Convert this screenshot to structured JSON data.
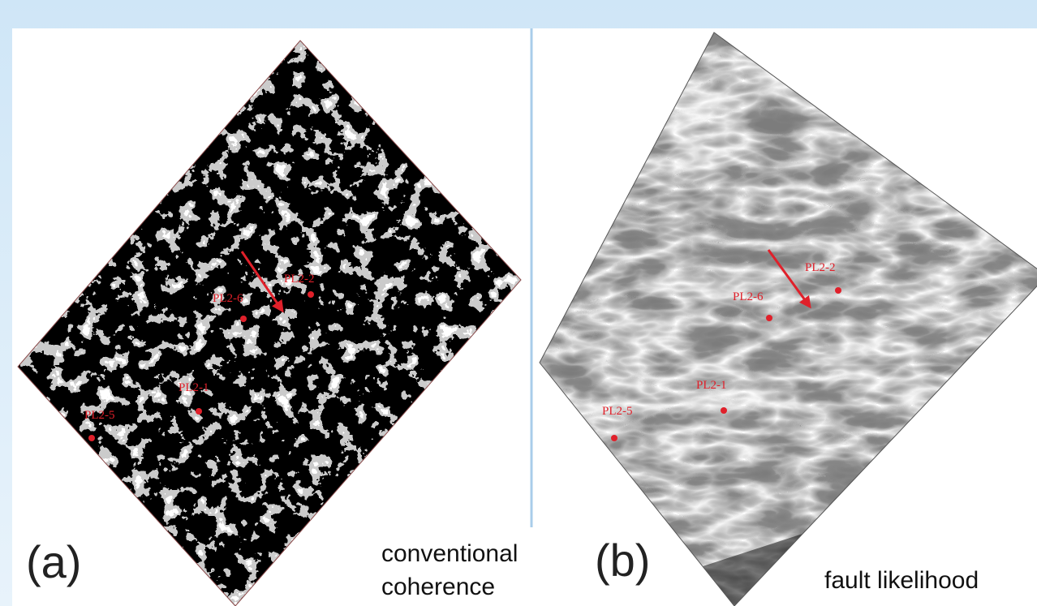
{
  "panels": [
    {
      "label": "(a)",
      "caption_lines": [
        "conventional",
        "coherence"
      ],
      "wells": [
        "PL2-2",
        "PL2-6",
        "PL2-1",
        "PL2-5"
      ]
    },
    {
      "label": "(b)",
      "caption_lines": [
        "fault likelihood"
      ],
      "wells": [
        "PL2-6",
        "PL2-2",
        "PL2-1",
        "PL2-5"
      ]
    }
  ]
}
